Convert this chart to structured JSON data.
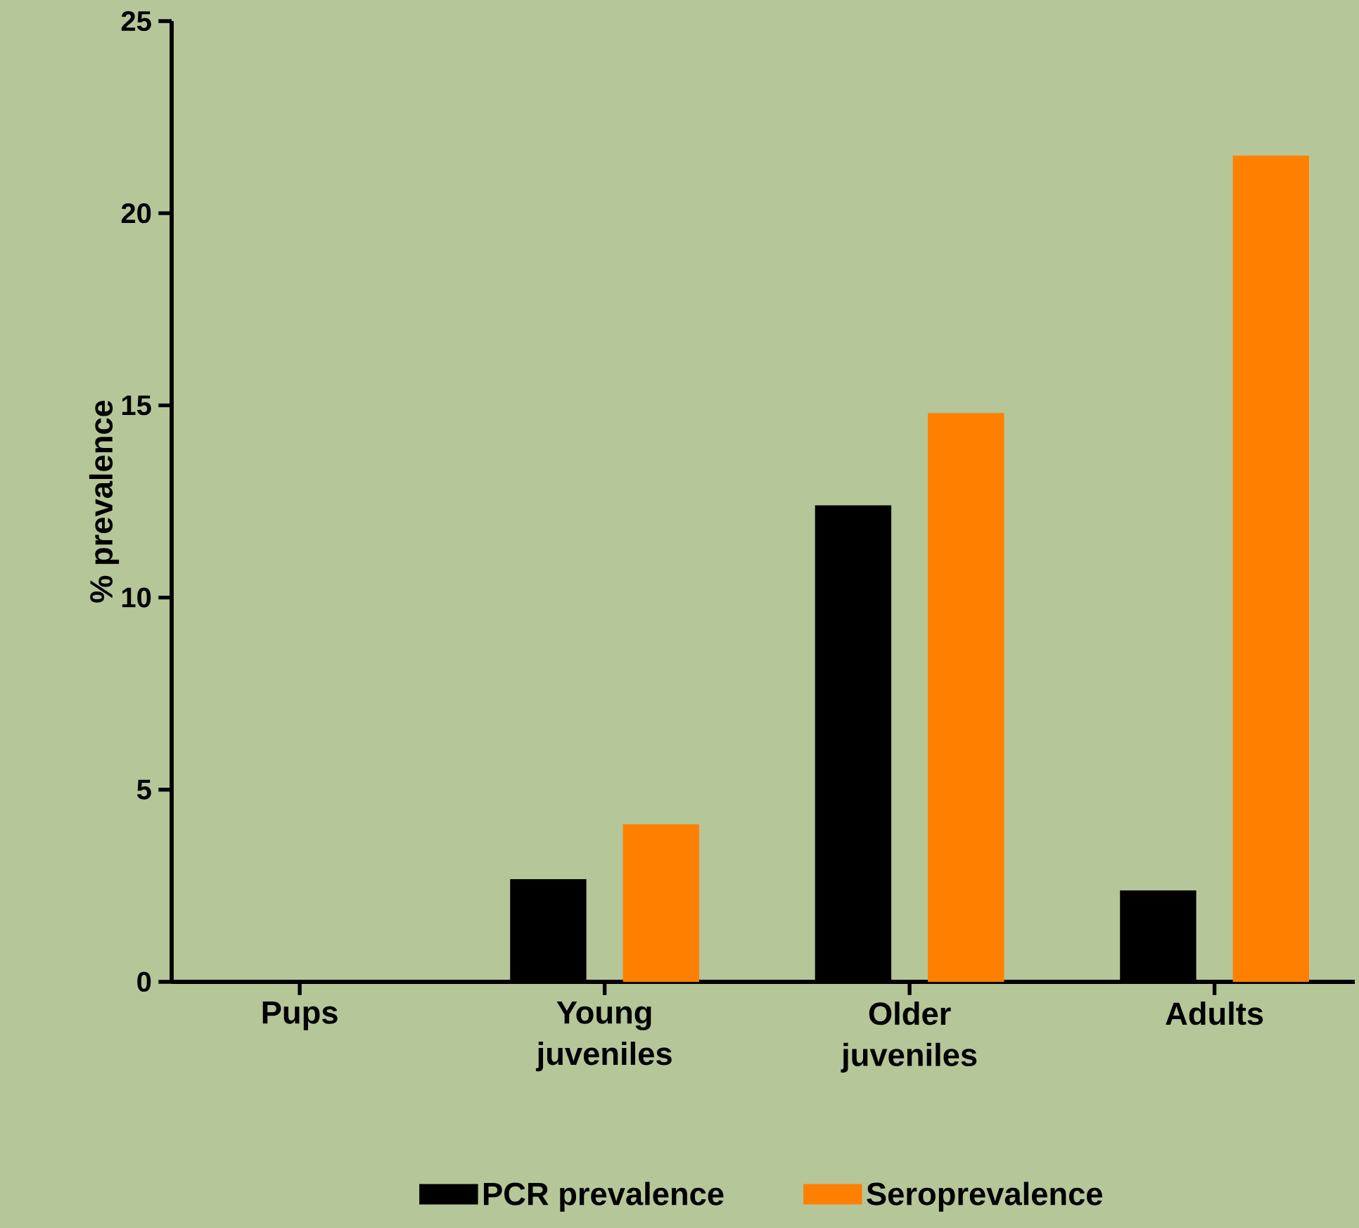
{
  "chart_data": {
    "type": "bar",
    "ylabel": "% prevalence",
    "categories": [
      "Pups",
      "Young\njuveniles",
      "Older\njuveniles",
      "Adults"
    ],
    "series": [
      {
        "name": "PCR prevalence",
        "color": "#000000",
        "values": [
          0,
          2.67,
          12.4,
          2.38
        ]
      },
      {
        "name": "Seroprevalence",
        "color": "#ff8000",
        "values": [
          0,
          4.1,
          14.8,
          21.5
        ]
      }
    ],
    "ylim": [
      0,
      25
    ],
    "yticks": [
      0,
      5,
      10,
      15,
      20,
      25
    ],
    "grid": false,
    "legend": "bottom"
  }
}
